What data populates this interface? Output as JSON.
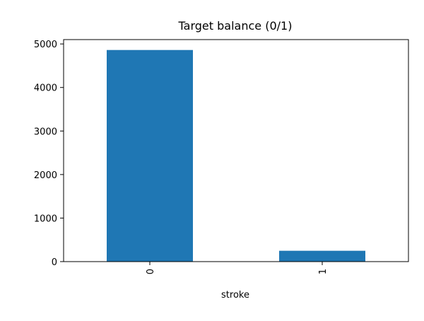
{
  "chart_data": {
    "type": "bar",
    "title": "Target balance (0/1)",
    "xlabel": "stroke",
    "ylabel": "",
    "categories": [
      "0",
      "1"
    ],
    "values": [
      4861,
      249
    ],
    "ylim": [
      0,
      5100
    ],
    "yticks": [
      0,
      1000,
      2000,
      3000,
      4000,
      5000
    ],
    "ytick_labels": [
      "0",
      "1000",
      "2000",
      "3000",
      "4000",
      "5000"
    ],
    "xtick_rotation": "vertical",
    "grid": false,
    "legend": "none",
    "colors": {
      "bar": "#1f77b4",
      "axes": "#000000",
      "background": "#ffffff"
    }
  }
}
